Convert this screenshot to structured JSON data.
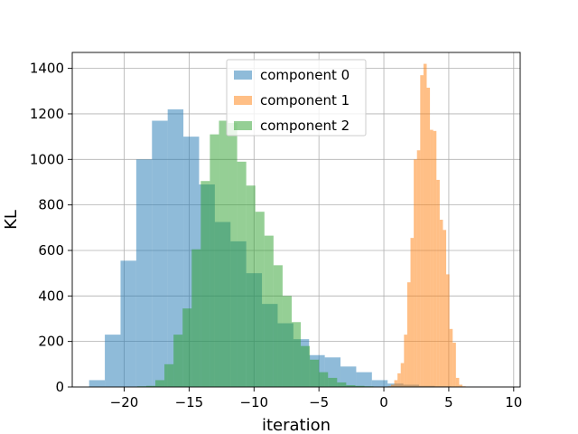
{
  "chart_data": {
    "type": "histogram",
    "title": "",
    "xlabel": "iteration",
    "ylabel": "KL",
    "xlim": [
      -24,
      10.5
    ],
    "ylim": [
      0,
      1470
    ],
    "xticks": [
      -20,
      -15,
      -10,
      -5,
      0,
      5,
      10
    ],
    "xtick_labels": [
      "−20",
      "−15",
      "−10",
      "−5",
      "0",
      "5",
      "10"
    ],
    "yticks": [
      0,
      200,
      400,
      600,
      800,
      1000,
      1200,
      1400
    ],
    "ytick_labels": [
      "0",
      "200",
      "400",
      "600",
      "800",
      "1000",
      "1200",
      "1400"
    ],
    "grid": true,
    "legend_position": "top-center",
    "alpha": 0.5,
    "series": [
      {
        "name": "component 0",
        "color": "#1f77b4",
        "bin_start": -22.7,
        "bin_width": 1.21,
        "counts": [
          30,
          230,
          555,
          1000,
          1170,
          1220,
          1100,
          890,
          725,
          640,
          500,
          365,
          280,
          210,
          140,
          130,
          90,
          65,
          30,
          15,
          10,
          5,
          3,
          2,
          1,
          0,
          0,
          0
        ]
      },
      {
        "name": "component 1",
        "color": "#ff7f0e",
        "bin_start": 0.3,
        "bin_width": 0.25,
        "counts": [
          3,
          10,
          30,
          60,
          105,
          230,
          460,
          655,
          1000,
          1040,
          1370,
          1420,
          1315,
          1130,
          1125,
          910,
          735,
          690,
          495,
          255,
          195,
          40,
          10,
          3
        ]
      },
      {
        "name": "component 2",
        "color": "#2ca02c",
        "bin_start": -19.0,
        "bin_width": 0.7,
        "counts": [
          3,
          5,
          30,
          100,
          230,
          345,
          605,
          905,
          1110,
          1170,
          1160,
          990,
          885,
          770,
          665,
          535,
          400,
          285,
          180,
          120,
          65,
          40,
          20,
          8,
          5,
          3
        ]
      }
    ]
  }
}
